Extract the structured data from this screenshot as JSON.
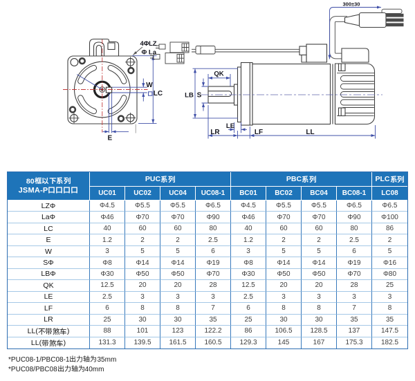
{
  "drawing": {
    "front_view": {
      "bolt_hole_label": "4ΦLZ",
      "pilot_dia_label": "Φ La",
      "keyway_width_label": "W",
      "frame_size_label": "LC",
      "keyway_offset_label": "E"
    },
    "side_view": {
      "flange_pilot_label": "LB",
      "shaft_dia_label": "S",
      "key_length_label": "QK",
      "pilot_depth_label": "LE",
      "shaft_ext_label": "LR",
      "flange_thickness_label": "LF",
      "body_length_label": "LL",
      "cable_length_label": "300±30"
    }
  },
  "table": {
    "corner_header_line1": "80框以下系列",
    "corner_header_line2": "JSMA-P口口口口",
    "col_groups": [
      {
        "label": "PUC系列",
        "span": 4
      },
      {
        "label": "PBC系列",
        "span": 4
      },
      {
        "label": "PLC系列",
        "span": 1
      }
    ],
    "model_headers": [
      "UC01",
      "UC02",
      "UC04",
      "UC08-1",
      "BC01",
      "BC02",
      "BC04",
      "BC08-1",
      "LC08"
    ],
    "rows": [
      {
        "label": "LZΦ",
        "values": [
          "Φ4.5",
          "Φ5.5",
          "Φ5.5",
          "Φ6.5",
          "Φ4.5",
          "Φ5.5",
          "Φ5.5",
          "Φ6.5",
          "Φ6.5"
        ]
      },
      {
        "label": "LaΦ",
        "values": [
          "Φ46",
          "Φ70",
          "Φ70",
          "Φ90",
          "Φ46",
          "Φ70",
          "Φ70",
          "Φ90",
          "Φ100"
        ]
      },
      {
        "label": "LC",
        "values": [
          "40",
          "60",
          "60",
          "80",
          "40",
          "60",
          "60",
          "80",
          "86"
        ]
      },
      {
        "label": "E",
        "values": [
          "1.2",
          "2",
          "2",
          "2.5",
          "1.2",
          "2",
          "2",
          "2.5",
          "2"
        ]
      },
      {
        "label": "W",
        "values": [
          "3",
          "5",
          "5",
          "6",
          "3",
          "5",
          "5",
          "6",
          "5"
        ]
      },
      {
        "label": "SΦ",
        "values": [
          "Φ8",
          "Φ14",
          "Φ14",
          "Φ19",
          "Φ8",
          "Φ14",
          "Φ14",
          "Φ19",
          "Φ16"
        ]
      },
      {
        "label": "LBΦ",
        "values": [
          "Φ30",
          "Φ50",
          "Φ50",
          "Φ70",
          "Φ30",
          "Φ50",
          "Φ50",
          "Φ70",
          "Φ80"
        ]
      },
      {
        "label": "QK",
        "values": [
          "12.5",
          "20",
          "20",
          "28",
          "12.5",
          "20",
          "20",
          "28",
          "25"
        ]
      },
      {
        "label": "LE",
        "values": [
          "2.5",
          "3",
          "3",
          "3",
          "2.5",
          "3",
          "3",
          "3",
          "3"
        ]
      },
      {
        "label": "LF",
        "values": [
          "6",
          "8",
          "8",
          "7",
          "6",
          "8",
          "8",
          "7",
          "8"
        ]
      },
      {
        "label": "LR",
        "values": [
          "25",
          "30",
          "30",
          "35",
          "25",
          "30",
          "30",
          "35",
          "35"
        ]
      },
      {
        "label": "LL(不带煞车)",
        "values": [
          "88",
          "101",
          "123",
          "122.2",
          "86",
          "106.5",
          "128.5",
          "137",
          "147.5"
        ]
      },
      {
        "label": "LL(带煞车)",
        "values": [
          "131.3",
          "139.5",
          "161.5",
          "160.5",
          "129.3",
          "145",
          "167",
          "175.3",
          "182.5"
        ]
      }
    ]
  },
  "footnotes": [
    "*PUC08-1/PBC08-1出力轴为35mm",
    "*PUC08/PBC08出力轴为40mm"
  ],
  "colors": {
    "header_blue": "#1e74b9",
    "grid_blue": "#3779bc",
    "grid_light_blue": "#a5c8e6",
    "dimension_blue": "#4050a8",
    "centerline_red": "#c23b3b"
  }
}
